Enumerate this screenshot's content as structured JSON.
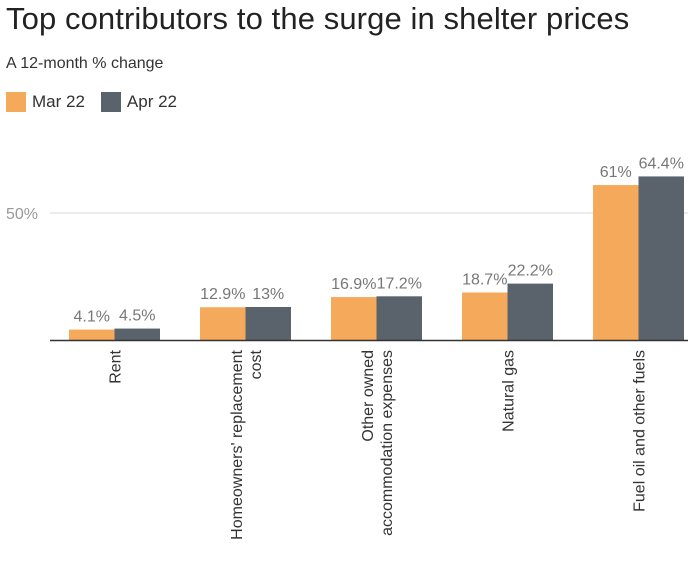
{
  "chart_data": {
    "type": "bar",
    "title": "Top contributors to the surge in shelter prices",
    "subtitle": "A 12-month % change",
    "categories": [
      "Rent",
      "Homeowners' replacement cost",
      "Other owned accommodation expenses",
      "Natural gas",
      "Fuel oil and other fuels"
    ],
    "category_lines": [
      [
        "Rent"
      ],
      [
        "Homeowners' replacement",
        "cost"
      ],
      [
        "Other owned",
        "accommodation expenses"
      ],
      [
        "Natural gas"
      ],
      [
        "Fuel oil and other fuels"
      ]
    ],
    "series": [
      {
        "name": "Mar 22",
        "color": "#F5A95B",
        "values": [
          4.1,
          12.9,
          16.9,
          18.7,
          61
        ],
        "labels": [
          "4.1%",
          "12.9%",
          "16.9%",
          "18.7%",
          "61%"
        ]
      },
      {
        "name": "Apr 22",
        "color": "#5A636B",
        "values": [
          4.5,
          13,
          17.2,
          22.2,
          64.4
        ],
        "labels": [
          "4.5%",
          "13%",
          "17.2%",
          "22.2%",
          "64.4%"
        ]
      }
    ],
    "yticks": [
      {
        "value": 50,
        "label": "50%"
      }
    ],
    "ylim": [
      0,
      75
    ],
    "xlabel": "",
    "ylabel": "",
    "legend_position": "top-left"
  }
}
